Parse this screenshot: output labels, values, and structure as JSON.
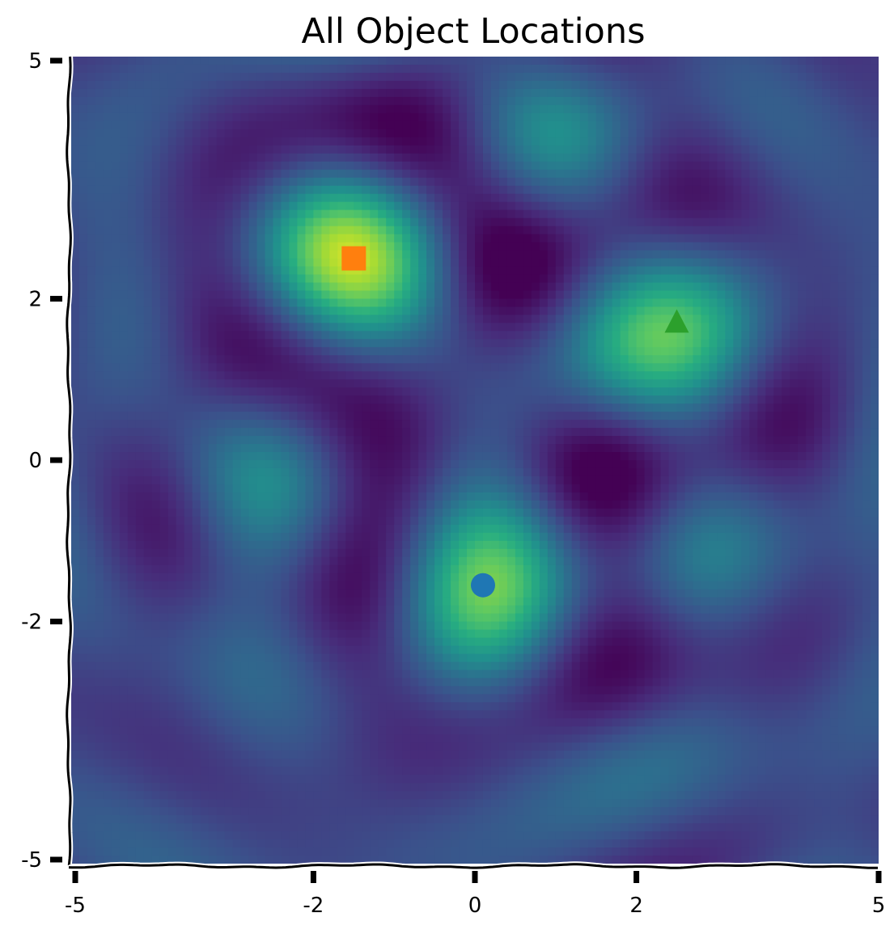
{
  "chart_data": {
    "type": "heatmap",
    "title": "All Object Locations",
    "xlabel": "",
    "ylabel": "",
    "xlim": [
      -5.0,
      5.0
    ],
    "ylim": [
      -5.0,
      5.0
    ],
    "x_ticks": [
      {
        "value": -4.95,
        "label": "-5"
      },
      {
        "value": -2.0,
        "label": "-2"
      },
      {
        "value": 0.0,
        "label": "0"
      },
      {
        "value": 2.0,
        "label": "2"
      },
      {
        "value": 5.0,
        "label": "5"
      }
    ],
    "y_ticks": [
      {
        "value": 4.95,
        "label": "5"
      },
      {
        "value": 2.0,
        "label": "2"
      },
      {
        "value": 0.0,
        "label": "0"
      },
      {
        "value": -2.0,
        "label": "-2"
      },
      {
        "value": -4.95,
        "label": "-5"
      }
    ],
    "grid": false,
    "colormap": "viridis",
    "background_pattern": {
      "peaks": [
        {
          "x": -1.5,
          "y": 2.5,
          "amplitude": 1.0
        },
        {
          "x": 2.5,
          "y": 1.6,
          "amplitude": 0.85
        },
        {
          "x": 0.1,
          "y": -1.55,
          "amplitude": 0.85
        }
      ]
    },
    "objects": [
      {
        "marker": "square",
        "x": -1.5,
        "y": 2.5,
        "color": "#ff7f0e"
      },
      {
        "marker": "triangle",
        "x": 2.5,
        "y": 1.7,
        "color": "#2ca02c"
      },
      {
        "marker": "circle",
        "x": 0.1,
        "y": -1.55,
        "color": "#1f77b4"
      }
    ]
  }
}
